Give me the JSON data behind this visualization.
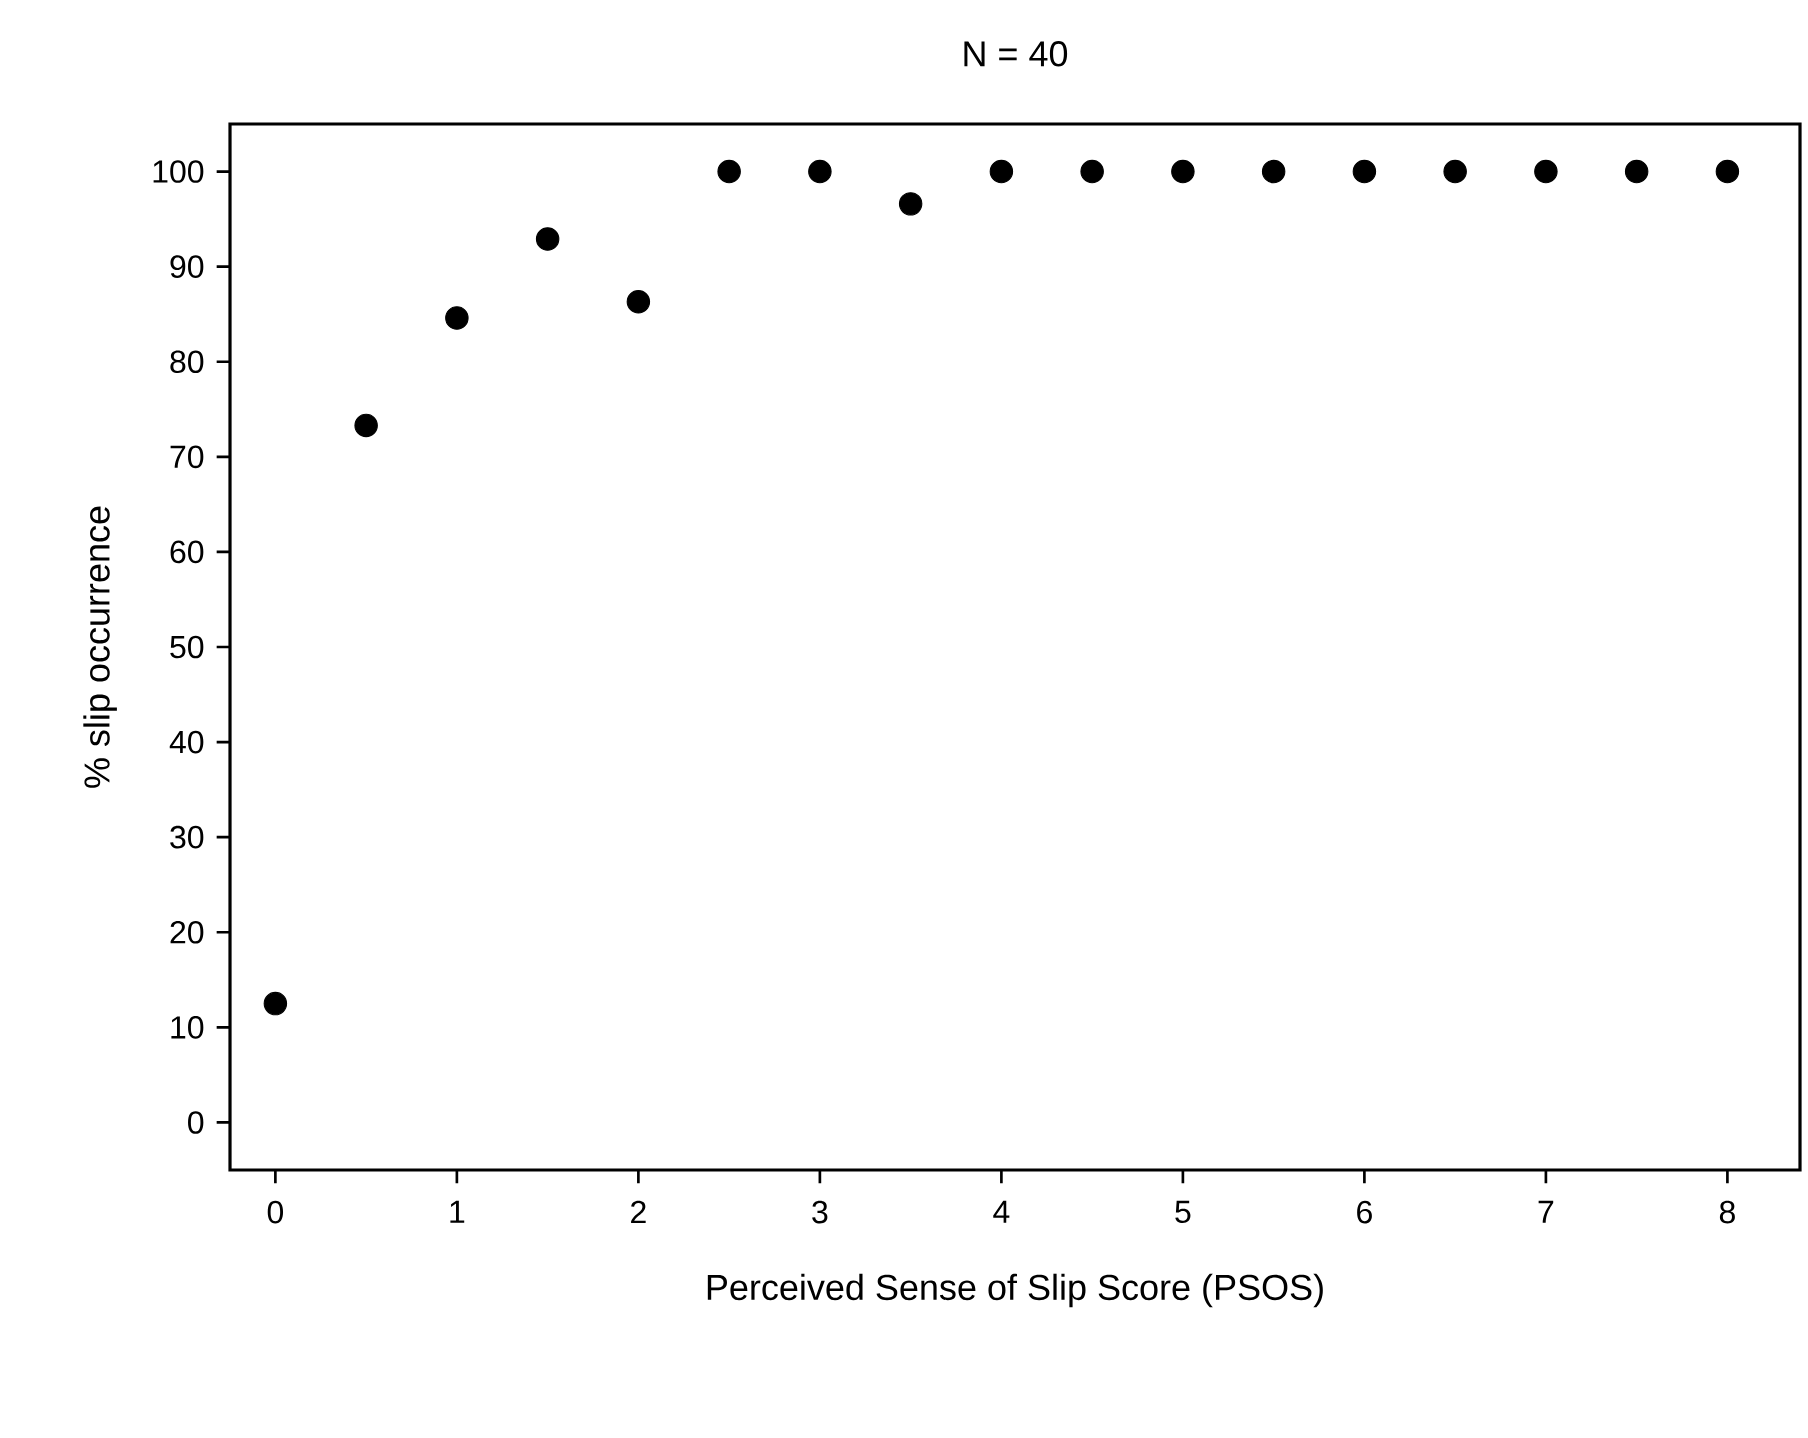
{
  "chart_data": {
    "type": "scatter",
    "title": "N = 40",
    "xlabel": "Perceived Sense of Slip Score (PSOS)",
    "ylabel": "% slip occurrence",
    "x": [
      0,
      0.5,
      1,
      1.5,
      2,
      2.5,
      3,
      3.5,
      4,
      4.5,
      5,
      5.5,
      6,
      6.5,
      7,
      7.5,
      8
    ],
    "series": [
      {
        "color": "#000000",
        "values": [
          12.5,
          73.3,
          84.6,
          92.9,
          86.3,
          100,
          100,
          96.6,
          100,
          100,
          100,
          100,
          100,
          100,
          100,
          100,
          100
        ]
      }
    ],
    "marker": "circle",
    "grid": false,
    "xlim": [
      -0.25,
      8.4
    ],
    "ylim": [
      -5,
      105
    ],
    "xticks": [
      0,
      1,
      2,
      3,
      4,
      5,
      6,
      7,
      8
    ],
    "yticks": [
      0,
      10,
      20,
      30,
      40,
      50,
      60,
      70,
      80,
      90,
      100
    ]
  }
}
